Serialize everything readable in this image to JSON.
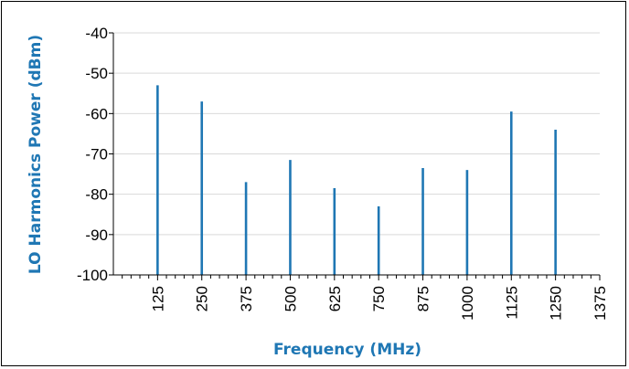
{
  "chart_data": {
    "type": "bar",
    "xlabel": "Frequency (MHz)",
    "ylabel": "LO Harmonics Power (dBm)",
    "x": [
      125,
      250,
      375,
      500,
      625,
      750,
      875,
      1000,
      1125,
      1250
    ],
    "values": [
      -53,
      -57,
      -77,
      -71.5,
      -78.5,
      -83,
      -73.5,
      -74,
      -59.5,
      -64
    ],
    "ylim": [
      -100,
      -40
    ],
    "yticks": [
      -40,
      -50,
      -60,
      -70,
      -80,
      -90,
      -100
    ],
    "xticks": [
      125,
      250,
      375,
      500,
      625,
      750,
      875,
      1000,
      1125,
      1250,
      1375
    ],
    "grid": true,
    "legend": "none",
    "bar_color": "#1f77b4",
    "title_color": "#1f77b4"
  }
}
